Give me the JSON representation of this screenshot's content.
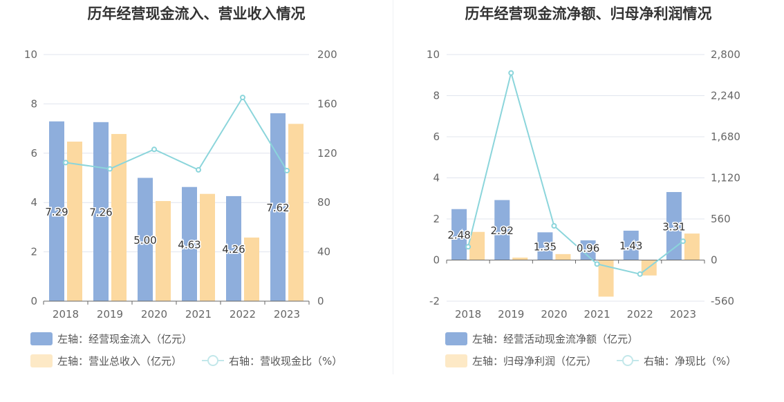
{
  "colors": {
    "bar_primary": "#8eaedc",
    "bar_secondary": "#fcd9a0",
    "line": "#8bd5db",
    "axis_text": "#666666",
    "grid": "#e0e4ee",
    "axis_line": "#666666"
  },
  "left": {
    "title": "历年经营现金流入、营业收入情况",
    "legend": {
      "bar_primary": "左轴：经营现金流入（亿元）",
      "bar_secondary": "左轴：营业总收入（亿元）",
      "line": "右轴：营收现金比（%）"
    }
  },
  "right": {
    "title": "历年经营现金流净额、归母净利润情况",
    "legend": {
      "bar_primary": "左轴：经营活动现金流净额（亿元）",
      "bar_secondary": "左轴：归母净利润（亿元）",
      "line": "右轴：净现比（%）"
    }
  },
  "chart_data": [
    {
      "type": "bar",
      "title": "历年经营现金流入、营业收入情况",
      "categories": [
        "2018",
        "2019",
        "2020",
        "2021",
        "2022",
        "2023"
      ],
      "y_left": {
        "ylim": [
          0,
          10
        ],
        "ticks": [
          0,
          2,
          4,
          6,
          8,
          10
        ],
        "tick_labels": [
          "0",
          "2",
          "4",
          "6",
          "8",
          "10"
        ]
      },
      "y_right": {
        "ylim": [
          0,
          200
        ],
        "ticks": [
          0,
          40,
          80,
          120,
          160,
          200
        ],
        "tick_labels": [
          "0",
          "40",
          "80",
          "120",
          "160",
          "200"
        ]
      },
      "series": [
        {
          "name": "左轴：经营现金流入（亿元）",
          "kind": "bar",
          "axis": "left",
          "values": [
            7.29,
            7.26,
            5.0,
            4.63,
            4.26,
            7.62
          ],
          "labels": [
            "7.29",
            "7.26",
            "5.00",
            "4.63",
            "4.26",
            "7.62"
          ]
        },
        {
          "name": "左轴：营业总收入（亿元）",
          "kind": "bar",
          "axis": "left",
          "values": [
            6.47,
            6.78,
            4.06,
            4.35,
            2.58,
            7.19
          ]
        },
        {
          "name": "右轴：营收现金比（%）",
          "kind": "line",
          "axis": "right",
          "values": [
            112.4,
            107.3,
            123.1,
            106.5,
            165.2,
            105.9
          ]
        }
      ],
      "grid": true,
      "legend_position": "bottom-left"
    },
    {
      "type": "bar",
      "title": "历年经营现金流净额、归母净利润情况",
      "categories": [
        "2018",
        "2019",
        "2020",
        "2021",
        "2022",
        "2023"
      ],
      "y_left": {
        "ylim": [
          -2,
          10
        ],
        "ticks": [
          -2,
          0,
          2,
          4,
          6,
          8,
          10
        ],
        "tick_labels": [
          "-2",
          "0",
          "2",
          "4",
          "6",
          "8",
          "10"
        ]
      },
      "y_right": {
        "ylim": [
          -560,
          2800
        ],
        "ticks": [
          -560,
          0,
          560,
          1120,
          1680,
          2240,
          2800
        ],
        "tick_labels": [
          "-560",
          "0",
          "560",
          "1,120",
          "1,680",
          "2,240",
          "2,800"
        ]
      },
      "series": [
        {
          "name": "左轴：经营活动现金流净额（亿元）",
          "kind": "bar",
          "axis": "left",
          "values": [
            2.48,
            2.92,
            1.35,
            0.96,
            1.43,
            3.31
          ],
          "labels": [
            "2.48",
            "2.92",
            "1.35",
            "0.96",
            "1.43",
            "3.31"
          ]
        },
        {
          "name": "左轴：归母净利润（亿元）",
          "kind": "bar",
          "axis": "left",
          "values": [
            1.37,
            0.12,
            0.29,
            -1.78,
            -0.75,
            1.29
          ]
        },
        {
          "name": "右轴：净现比（%）",
          "kind": "line",
          "axis": "right",
          "values": [
            181,
            2550,
            466,
            -54,
            -191,
            257
          ]
        }
      ],
      "grid": true,
      "legend_position": "bottom-left"
    }
  ]
}
